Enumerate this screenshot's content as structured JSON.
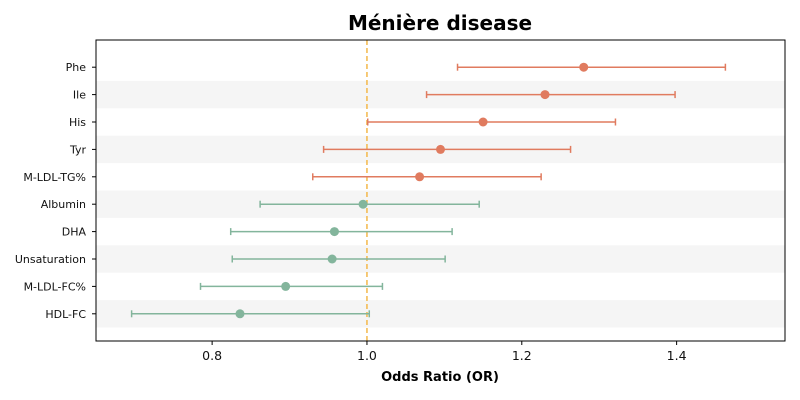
{
  "chart_data": {
    "type": "forest",
    "title": "Ménière disease",
    "xlabel": "Odds Ratio (OR)",
    "xlim": [
      0.65,
      1.54
    ],
    "xticks": [
      "0.8",
      "1.0",
      "1.2",
      "1.4"
    ],
    "xtick_values": [
      0.8,
      1.0,
      1.2,
      1.4
    ],
    "reference_line": 1.0,
    "colors": {
      "risk": "#e07b5f",
      "protective": "#83b59c",
      "reference": "#f3b84a",
      "band": "#f5f5f5",
      "axis": "#000000"
    },
    "rows": [
      {
        "label": "Phe",
        "or": 1.28,
        "lo": 1.117,
        "hi": 1.463,
        "group": "risk"
      },
      {
        "label": "Ile",
        "or": 1.23,
        "lo": 1.077,
        "hi": 1.398,
        "group": "risk"
      },
      {
        "label": "His",
        "or": 1.15,
        "lo": 1.001,
        "hi": 1.321,
        "group": "risk"
      },
      {
        "label": "Tyr",
        "or": 1.095,
        "lo": 0.944,
        "hi": 1.263,
        "group": "risk"
      },
      {
        "label": "M-LDL-TG%",
        "or": 1.068,
        "lo": 0.93,
        "hi": 1.225,
        "group": "risk"
      },
      {
        "label": "Albumin",
        "or": 0.995,
        "lo": 0.862,
        "hi": 1.145,
        "group": "protective"
      },
      {
        "label": "DHA",
        "or": 0.958,
        "lo": 0.824,
        "hi": 1.11,
        "group": "protective"
      },
      {
        "label": "Unsaturation",
        "or": 0.955,
        "lo": 0.826,
        "hi": 1.101,
        "group": "protective"
      },
      {
        "label": "M-LDL-FC%",
        "or": 0.895,
        "lo": 0.785,
        "hi": 1.02,
        "group": "protective"
      },
      {
        "label": "HDL-FC",
        "or": 0.836,
        "lo": 0.696,
        "hi": 1.003,
        "group": "protective"
      }
    ]
  }
}
